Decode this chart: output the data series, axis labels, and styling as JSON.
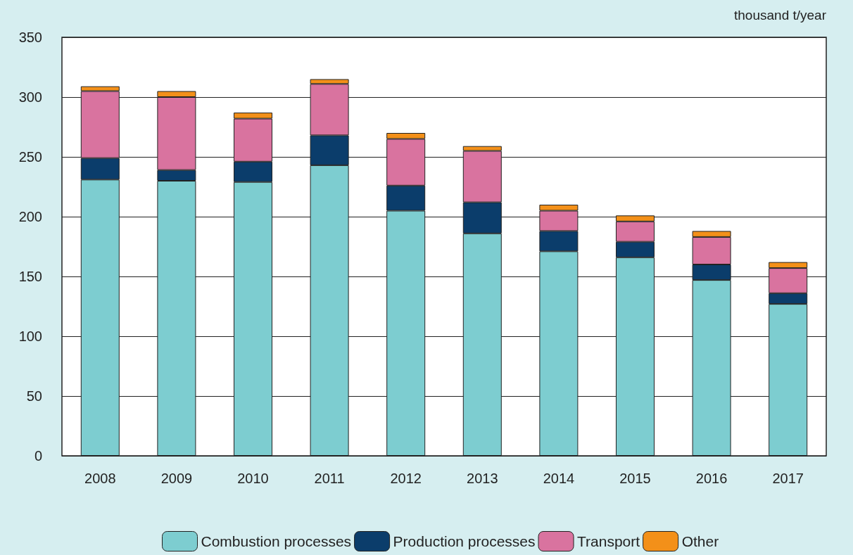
{
  "chart_data": {
    "type": "bar",
    "stacked": true,
    "ylabel": "thousand t/year",
    "categories": [
      "2008",
      "2009",
      "2010",
      "2011",
      "2012",
      "2013",
      "2014",
      "2015",
      "2016",
      "2017"
    ],
    "series": [
      {
        "name": "Combustion processes",
        "color": "#7dcdd0",
        "values": [
          231,
          230,
          229,
          243,
          205,
          186,
          171,
          166,
          147,
          127
        ]
      },
      {
        "name": "Production processes",
        "color": "#0b3d6b",
        "values": [
          18,
          9,
          17,
          25,
          21,
          26,
          17,
          13,
          13,
          9
        ]
      },
      {
        "name": "Transport",
        "color": "#d9739f",
        "values": [
          56,
          61,
          36,
          43,
          39,
          43,
          17,
          17,
          23,
          21
        ]
      },
      {
        "name": "Other",
        "color": "#f39019",
        "values": [
          4,
          5,
          5,
          4,
          5,
          4,
          5,
          5,
          5,
          5
        ]
      }
    ],
    "ylim": [
      0,
      350
    ],
    "yticks": [
      0,
      50,
      100,
      150,
      200,
      250,
      300,
      350
    ],
    "grid": "y",
    "legend": "bottom"
  }
}
